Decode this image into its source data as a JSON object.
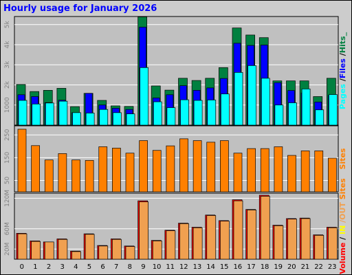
{
  "title": "Hourly usage for January 2026",
  "colors": {
    "hits": "#008040",
    "files": "#0000ff",
    "pages": "#00ffff",
    "sites": "#ff8000",
    "volume": "#ff0000",
    "in_out": "#f0a050",
    "panel_bg": "#c0c0c0",
    "frame_bg": "#cccccc",
    "grid": "#ffffff"
  },
  "chart_data": [
    {
      "type": "bar",
      "panel": "top",
      "ylabel_parts": [
        {
          "text": "Pages",
          "color": "#00ffff"
        },
        {
          "text": " /",
          "color": "#000000"
        },
        {
          "text": "Files",
          "color": "#0000ff"
        },
        {
          "text": " /",
          "color": "#000000"
        },
        {
          "text": "Hits_",
          "color": "#008040"
        }
      ],
      "yticks": [
        {
          "label": "1000",
          "value": 1000
        },
        {
          "label": "2k",
          "value": 2000
        },
        {
          "label": "3k",
          "value": 3000
        },
        {
          "label": "4k",
          "value": 4000
        },
        {
          "label": "5k",
          "value": 5000
        }
      ],
      "ylim": [
        0,
        5400
      ],
      "categories": [
        "0",
        "1",
        "2",
        "3",
        "4",
        "5",
        "6",
        "7",
        "8",
        "9",
        "10",
        "11",
        "12",
        "13",
        "14",
        "15",
        "16",
        "17",
        "18",
        "19",
        "20",
        "21",
        "22",
        "23"
      ],
      "series": [
        {
          "name": "Hits",
          "values": [
            2020,
            1670,
            1730,
            1830,
            920,
            1580,
            1230,
            960,
            930,
            5380,
            1950,
            1740,
            2330,
            2220,
            2330,
            2860,
            4830,
            4480,
            4350,
            2200,
            2200,
            2200,
            1420,
            2330
          ]
        },
        {
          "name": "Files",
          "values": [
            1510,
            1420,
            1120,
            1240,
            620,
            1580,
            1000,
            840,
            780,
            4870,
            1350,
            1510,
            1960,
            1730,
            1850,
            2320,
            4070,
            3960,
            3980,
            2110,
            1720,
            1600,
            1150,
            1480
          ]
        },
        {
          "name": "Pages",
          "values": [
            1230,
            1050,
            1100,
            1190,
            620,
            600,
            780,
            620,
            560,
            2860,
            1160,
            870,
            1260,
            1230,
            1250,
            1550,
            2620,
            2960,
            2330,
            1000,
            1110,
            1800,
            760,
            1520
          ]
        }
      ]
    },
    {
      "type": "bar",
      "panel": "middle",
      "ylabel_parts": [
        {
          "text": "Sites",
          "color": "#ff8000"
        }
      ],
      "yticks": [
        {
          "label": "50",
          "value": 50
        },
        {
          "label": "150",
          "value": 150
        },
        {
          "label": "250",
          "value": 250
        }
      ],
      "ylim": [
        0,
        290
      ],
      "categories": [
        "0",
        "1",
        "2",
        "3",
        "4",
        "5",
        "6",
        "7",
        "8",
        "9",
        "10",
        "11",
        "12",
        "13",
        "14",
        "15",
        "16",
        "17",
        "18",
        "19",
        "20",
        "21",
        "22",
        "23"
      ],
      "series": [
        {
          "name": "Sites",
          "values": [
            275,
            203,
            140,
            168,
            140,
            138,
            198,
            192,
            170,
            225,
            182,
            202,
            233,
            225,
            218,
            225,
            170,
            190,
            190,
            198,
            160,
            180,
            180,
            148
          ]
        }
      ]
    },
    {
      "type": "bar",
      "panel": "bottom",
      "ylabel_parts": [
        {
          "text": "Volume",
          "color": "#ff0000"
        },
        {
          "text": "  /",
          "color": "#000000"
        },
        {
          "text": " IN",
          "color": "#ffff00"
        },
        {
          "text": "  /OUT",
          "color": "#f0a050"
        },
        {
          "text": "  Sites",
          "color": "#ff8000"
        }
      ],
      "yticks": [
        {
          "label": "20M",
          "value": 20
        },
        {
          "label": "60M",
          "value": 60
        },
        {
          "label": "120M",
          "value": 120
        }
      ],
      "ylim": [
        0,
        130
      ],
      "categories": [
        "0",
        "1",
        "2",
        "3",
        "4",
        "5",
        "6",
        "7",
        "8",
        "9",
        "10",
        "11",
        "12",
        "13",
        "14",
        "15",
        "16",
        "17",
        "18",
        "19",
        "20",
        "21",
        "22",
        "23"
      ],
      "series": [
        {
          "name": "Volume",
          "values": [
            51,
            36,
            34,
            40,
            16,
            50,
            27,
            40,
            26,
            115,
            37,
            57,
            71,
            63,
            87,
            76,
            117,
            98,
            126,
            67,
            80,
            81,
            48,
            63
          ]
        },
        {
          "name": "OUT",
          "values": [
            50,
            35,
            34,
            39,
            15,
            49,
            26,
            39,
            25,
            113,
            36,
            56,
            70,
            62,
            86,
            75,
            115,
            97,
            124,
            66,
            79,
            80,
            47,
            62
          ]
        }
      ]
    }
  ]
}
